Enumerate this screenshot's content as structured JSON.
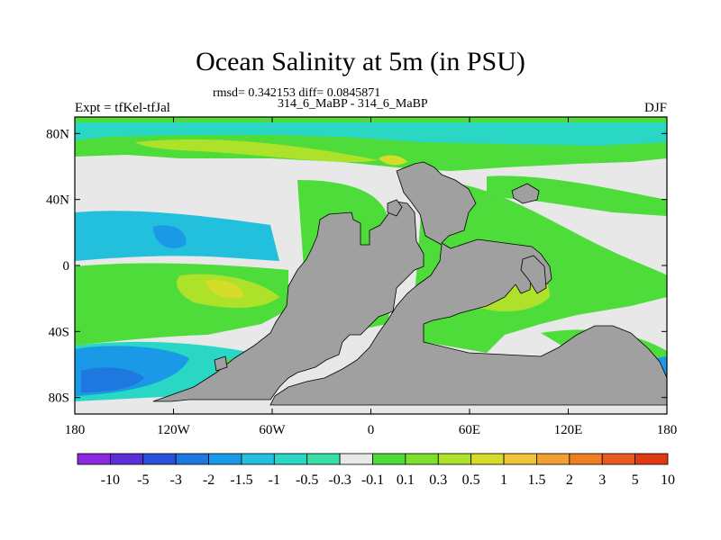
{
  "chart_data": {
    "type": "heatmap",
    "title": "Ocean Salinity at 5m (in PSU)",
    "stats_text": "rmsd= 0.342153 diff= 0.0845871",
    "subtitle": "314_6_MaBP - 314_6_MaBP",
    "left_label": "Expt = tfKel-tfJal",
    "right_label": "DJF",
    "x_ticks": [
      "180",
      "120W",
      "60W",
      "0",
      "60E",
      "120E",
      "180"
    ],
    "y_ticks": [
      "80N",
      "40N",
      "0",
      "40S",
      "80S"
    ],
    "xlim": [
      -180,
      180
    ],
    "ylim": [
      -90,
      90
    ],
    "colorbar": {
      "labels": [
        "-10",
        "-5",
        "-3",
        "-2",
        "-1.5",
        "-1",
        "-0.5",
        "-0.3",
        "-0.1",
        "0.1",
        "0.3",
        "0.5",
        "1",
        "1.5",
        "2",
        "3",
        "5",
        "10"
      ],
      "colors": [
        "#8a2be2",
        "#5a2fd8",
        "#2a52d9",
        "#1f78e0",
        "#1a9ae6",
        "#22c0dc",
        "#2ad6c4",
        "#3adfa8",
        "#e8e8e8",
        "#4ddc3a",
        "#7de02f",
        "#aee22a",
        "#d6dc2a",
        "#eec43a",
        "#f0a030",
        "#ee7f22",
        "#e85a1e",
        "#e03a14"
      ]
    }
  }
}
